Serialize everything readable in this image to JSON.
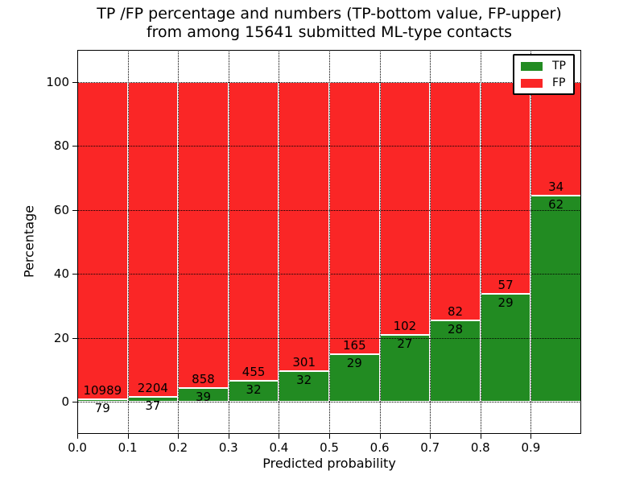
{
  "figure": {
    "background": "#ffffff"
  },
  "chart_data": {
    "type": "bar",
    "stacked": true,
    "normalized": "each bar scaled to 100%",
    "title_lines": [
      "TP /FP percentage and numbers (TP-bottom value, FP-upper)",
      "from among 15641 submitted ML-type contacts"
    ],
    "xlabel": "Predicted probability",
    "ylabel": "Percentage",
    "total_contacts": 15641,
    "xlim": [
      0.0,
      1.0
    ],
    "ylim": [
      -10,
      110
    ],
    "bin_width": 0.1,
    "x_ticks": [
      0.0,
      0.1,
      0.2,
      0.3,
      0.4,
      0.5,
      0.6,
      0.7,
      0.8,
      0.9
    ],
    "x_tick_labels": [
      "0.0",
      "0.1",
      "0.2",
      "0.3",
      "0.4",
      "0.5",
      "0.6",
      "0.7",
      "0.8",
      "0.9"
    ],
    "y_ticks": [
      0,
      20,
      40,
      60,
      80,
      100
    ],
    "y_tick_labels": [
      "0",
      "20",
      "40",
      "60",
      "80",
      "100"
    ],
    "grid": "dotted, both axes",
    "legend_position": "upper right",
    "bar_edge_color": "#ffffff",
    "series": [
      {
        "name": "TP",
        "color": "#228b22",
        "counts": [
          79,
          37,
          39,
          32,
          32,
          29,
          27,
          28,
          29,
          62
        ]
      },
      {
        "name": "FP",
        "color": "#fa2626",
        "counts": [
          10989,
          2204,
          858,
          455,
          301,
          165,
          102,
          82,
          57,
          34
        ]
      }
    ],
    "tp_percent_of_bin": [
      0.71,
      1.65,
      4.35,
      6.57,
      9.61,
      14.95,
      20.93,
      25.45,
      33.72,
      64.58
    ]
  }
}
